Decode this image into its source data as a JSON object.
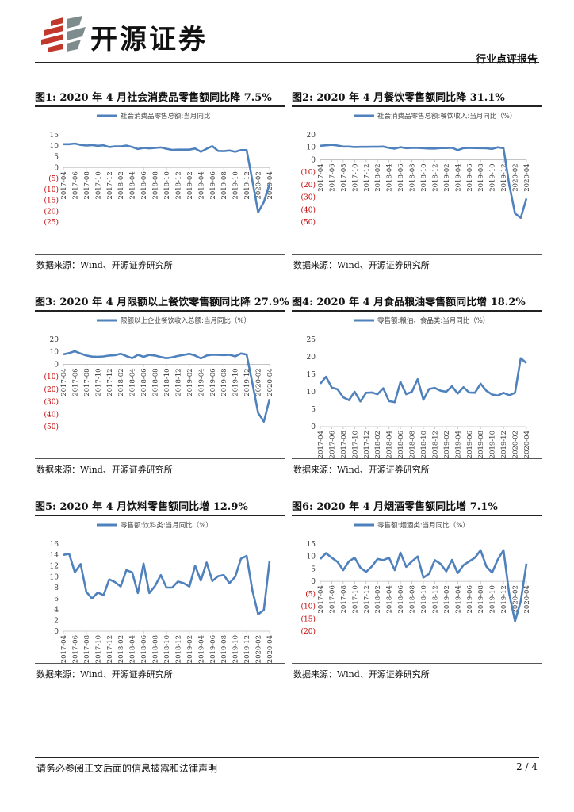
{
  "header": {
    "brand": "开源证券",
    "report_type": "行业点评报告"
  },
  "footer": {
    "disclaimer": "请务必参阅正文后面的信息披露和法律声明",
    "page": "2 / 4"
  },
  "colors": {
    "line": "#4F81BD",
    "negative_tick": "#C00000",
    "tick": "#333333"
  },
  "chart_data": [
    {
      "type": "line",
      "title": "图1:  2020 年 4 月社会消费品零售额同比降 7.5%",
      "source": "数据来源：Wind、开源证券研究所",
      "legend": "社会消费品零售总额:当月同比",
      "legend_position": "top",
      "ylim": [
        -25,
        15
      ],
      "yticks": [
        15,
        10,
        5,
        0,
        -5,
        -10,
        -15,
        -20,
        -25
      ],
      "x_tick_labels": [
        "2017-04",
        "2017-06",
        "2017-08",
        "2017-10",
        "2017-12",
        "2018-02",
        "2018-04",
        "2018-06",
        "2018-08",
        "2018-10",
        "2018-12",
        "2019-02",
        "2019-04",
        "2019-06",
        "2019-08",
        "2019-10",
        "2019-12",
        "2020-02",
        "2020-04"
      ],
      "x": [
        "2017-04",
        "2017-05",
        "2017-06",
        "2017-07",
        "2017-08",
        "2017-09",
        "2017-10",
        "2017-11",
        "2017-12",
        "2018-01",
        "2018-02",
        "2018-03",
        "2018-04",
        "2018-05",
        "2018-06",
        "2018-07",
        "2018-08",
        "2018-09",
        "2018-10",
        "2018-11",
        "2018-12",
        "2019-01",
        "2019-02",
        "2019-03",
        "2019-04",
        "2019-05",
        "2019-06",
        "2019-07",
        "2019-08",
        "2019-09",
        "2019-10",
        "2019-11",
        "2019-12",
        "2020-01",
        "2020-02",
        "2020-03",
        "2020-04"
      ],
      "values": [
        10.7,
        10.7,
        11.0,
        10.4,
        10.1,
        10.3,
        10.0,
        10.2,
        9.4,
        9.7,
        9.7,
        10.1,
        9.4,
        8.5,
        9.0,
        8.8,
        9.0,
        9.2,
        8.6,
        8.1,
        8.2,
        8.2,
        8.2,
        8.7,
        7.2,
        8.6,
        9.8,
        7.6,
        7.5,
        7.8,
        7.2,
        8.0,
        8.0,
        -6.0,
        -20.5,
        -15.8,
        -7.5
      ]
    },
    {
      "type": "line",
      "title": "图2:  2020 年 4 月餐饮零售额同比降 31.1%",
      "source": "数据来源：Wind、开源证券研究所",
      "legend": "社会消费品零售总额:餐饮收入:当月同比（%）",
      "legend_position": "top",
      "ylim": [
        -50,
        20
      ],
      "yticks": [
        20,
        10,
        0,
        -10,
        -20,
        -30,
        -40,
        -50
      ],
      "x_tick_labels": [
        "2017-04",
        "2017-06",
        "2017-08",
        "2017-10",
        "2017-12",
        "2018-02",
        "2018-04",
        "2018-06",
        "2018-08",
        "2018-10",
        "2018-12",
        "2019-02",
        "2019-04",
        "2019-06",
        "2019-08",
        "2019-10",
        "2019-12",
        "2020-02",
        "2020-04"
      ],
      "x": [
        "2017-04",
        "2017-05",
        "2017-06",
        "2017-07",
        "2017-08",
        "2017-09",
        "2017-10",
        "2017-11",
        "2017-12",
        "2018-01",
        "2018-02",
        "2018-03",
        "2018-04",
        "2018-05",
        "2018-06",
        "2018-07",
        "2018-08",
        "2018-09",
        "2018-10",
        "2018-11",
        "2018-12",
        "2019-01",
        "2019-02",
        "2019-03",
        "2019-04",
        "2019-05",
        "2019-06",
        "2019-07",
        "2019-08",
        "2019-09",
        "2019-10",
        "2019-11",
        "2019-12",
        "2020-01",
        "2020-02",
        "2020-03",
        "2020-04"
      ],
      "values": [
        11.2,
        11.6,
        12.0,
        11.4,
        10.6,
        10.6,
        10.2,
        10.3,
        10.3,
        10.4,
        10.4,
        10.6,
        9.5,
        8.9,
        10.1,
        9.3,
        9.5,
        9.5,
        9.3,
        9.0,
        9.0,
        9.4,
        9.4,
        9.6,
        7.7,
        9.3,
        9.5,
        9.4,
        9.3,
        9.2,
        8.7,
        10.0,
        9.2,
        -20.0,
        -43.1,
        -46.6,
        -31.1
      ]
    },
    {
      "type": "line",
      "title": "图3:  2020 年 4 月限额以上餐饮零售额同比降 27.9%",
      "source": "数据来源：Wind、开源证券研究所",
      "legend": "限额以上企业餐饮收入总额:当月同比（%）",
      "legend_position": "top",
      "ylim": [
        -50,
        20
      ],
      "yticks": [
        20,
        10,
        0,
        -10,
        -20,
        -30,
        -40,
        -50
      ],
      "x_tick_labels": [
        "2017-04",
        "2017-06",
        "2017-08",
        "2017-10",
        "2017-12",
        "2018-02",
        "2018-04",
        "2018-06",
        "2018-08",
        "2018-10",
        "2018-12",
        "2019-02",
        "2019-04",
        "2019-06",
        "2019-08",
        "2019-10",
        "2019-12",
        "2020-02",
        "2020-04"
      ],
      "x": [
        "2017-04",
        "2017-05",
        "2017-06",
        "2017-07",
        "2017-08",
        "2017-09",
        "2017-10",
        "2017-11",
        "2017-12",
        "2018-01",
        "2018-02",
        "2018-03",
        "2018-04",
        "2018-05",
        "2018-06",
        "2018-07",
        "2018-08",
        "2018-09",
        "2018-10",
        "2018-11",
        "2018-12",
        "2019-01",
        "2019-02",
        "2019-03",
        "2019-04",
        "2019-05",
        "2019-06",
        "2019-07",
        "2019-08",
        "2019-09",
        "2019-10",
        "2019-11",
        "2019-12",
        "2020-01",
        "2020-02",
        "2020-03",
        "2020-04"
      ],
      "values": [
        8.0,
        9.0,
        10.5,
        8.6,
        7.0,
        6.2,
        6.0,
        6.3,
        7.0,
        7.3,
        8.5,
        6.6,
        4.9,
        7.6,
        6.0,
        7.5,
        7.0,
        5.8,
        4.9,
        5.6,
        6.7,
        7.5,
        8.4,
        7.0,
        4.7,
        7.0,
        7.7,
        7.5,
        7.4,
        7.6,
        6.4,
        8.7,
        7.8,
        -15.0,
        -39.0,
        -46.0,
        -27.9
      ]
    },
    {
      "type": "line",
      "title": "图4:  2020 年 4 月食品粮油零售额同比增 18.2%",
      "source": "数据来源：Wind、开源证券研究所",
      "legend": "零售额:粮油、食品类:当月同比（%）",
      "legend_position": "top",
      "ylim": [
        0,
        25
      ],
      "yticks": [
        25,
        20,
        15,
        10,
        5,
        0
      ],
      "x_tick_labels": [
        "2017-04",
        "2017-06",
        "2017-08",
        "2017-10",
        "2017-12",
        "2018-02",
        "2018-04",
        "2018-06",
        "2018-08",
        "2018-10",
        "2018-12",
        "2019-02",
        "2019-04",
        "2019-06",
        "2019-08",
        "2019-10",
        "2019-12",
        "2020-02",
        "2020-04"
      ],
      "x": [
        "2017-04",
        "2017-05",
        "2017-06",
        "2017-07",
        "2017-08",
        "2017-09",
        "2017-10",
        "2017-11",
        "2017-12",
        "2018-01",
        "2018-02",
        "2018-03",
        "2018-04",
        "2018-05",
        "2018-06",
        "2018-07",
        "2018-08",
        "2018-09",
        "2018-10",
        "2018-11",
        "2018-12",
        "2019-01",
        "2019-02",
        "2019-03",
        "2019-04",
        "2019-05",
        "2019-06",
        "2019-07",
        "2019-08",
        "2019-09",
        "2019-10",
        "2019-11",
        "2019-12",
        "2020-01",
        "2020-02",
        "2020-03",
        "2020-04"
      ],
      "values": [
        12.3,
        14.3,
        11.2,
        10.7,
        8.4,
        7.6,
        10.0,
        7.2,
        9.7,
        9.8,
        9.3,
        11.0,
        7.3,
        7.0,
        12.8,
        9.3,
        10.0,
        13.6,
        7.7,
        10.8,
        11.1,
        10.3,
        10.0,
        11.6,
        9.5,
        11.3,
        9.8,
        9.7,
        12.3,
        10.3,
        9.2,
        8.9,
        9.7,
        9.0,
        9.7,
        19.6,
        18.2
      ]
    },
    {
      "type": "line",
      "title": "图5:  2020 年 4 月饮料零售额同比增 12.9%",
      "source": "数据来源：Wind、开源证券研究所",
      "legend": "零售额:饮料类:当月同比（%）",
      "legend_position": "top",
      "ylim": [
        0,
        16
      ],
      "yticks": [
        16,
        14,
        12,
        10,
        8,
        6,
        4,
        2,
        0
      ],
      "x_tick_labels": [
        "2017-04",
        "2017-06",
        "2017-08",
        "2017-10",
        "2017-12",
        "2018-02",
        "2018-04",
        "2018-06",
        "2018-08",
        "2018-10",
        "2018-12",
        "2019-02",
        "2019-04",
        "2019-06",
        "2019-08",
        "2019-10",
        "2019-12",
        "2020-02",
        "2020-04"
      ],
      "x": [
        "2017-04",
        "2017-05",
        "2017-06",
        "2017-07",
        "2017-08",
        "2017-09",
        "2017-10",
        "2017-11",
        "2017-12",
        "2018-01",
        "2018-02",
        "2018-03",
        "2018-04",
        "2018-05",
        "2018-06",
        "2018-07",
        "2018-08",
        "2018-09",
        "2018-10",
        "2018-11",
        "2018-12",
        "2019-01",
        "2019-02",
        "2019-03",
        "2019-04",
        "2019-05",
        "2019-06",
        "2019-07",
        "2019-08",
        "2019-09",
        "2019-10",
        "2019-11",
        "2019-12",
        "2020-01",
        "2020-02",
        "2020-03",
        "2020-04"
      ],
      "values": [
        14.0,
        14.2,
        10.8,
        12.3,
        7.2,
        6.0,
        7.1,
        6.6,
        9.5,
        9.0,
        8.2,
        11.2,
        10.8,
        7.0,
        12.4,
        7.0,
        8.3,
        10.3,
        8.0,
        8.0,
        9.1,
        8.8,
        8.2,
        12.0,
        9.3,
        12.6,
        9.2,
        10.1,
        10.3,
        8.8,
        10.0,
        13.3,
        13.8,
        7.5,
        3.1,
        3.9,
        12.9
      ]
    },
    {
      "type": "line",
      "title": "图6:  2020 年 4 月烟酒零售额同比增 7.1%",
      "source": "数据来源：Wind、开源证券研究所",
      "legend": "零售额:烟酒类:当月同比（%）",
      "legend_position": "top",
      "ylim": [
        -20,
        15
      ],
      "yticks": [
        15,
        10,
        5,
        0,
        -5,
        -10,
        -15,
        -20
      ],
      "x_tick_labels": [
        "2017-04",
        "2017-06",
        "2017-08",
        "2017-10",
        "2017-12",
        "2018-02",
        "2018-04",
        "2018-06",
        "2018-08",
        "2018-10",
        "2018-12",
        "2019-02",
        "2019-04",
        "2019-06",
        "2019-08",
        "2019-10",
        "2019-12",
        "2020-02",
        "2020-04"
      ],
      "x": [
        "2017-04",
        "2017-05",
        "2017-06",
        "2017-07",
        "2017-08",
        "2017-09",
        "2017-10",
        "2017-11",
        "2017-12",
        "2018-01",
        "2018-02",
        "2018-03",
        "2018-04",
        "2018-05",
        "2018-06",
        "2018-07",
        "2018-08",
        "2018-09",
        "2018-10",
        "2018-11",
        "2018-12",
        "2019-01",
        "2019-02",
        "2019-03",
        "2019-04",
        "2019-05",
        "2019-06",
        "2019-07",
        "2019-08",
        "2019-09",
        "2019-10",
        "2019-11",
        "2019-12",
        "2020-01",
        "2020-02",
        "2020-03",
        "2020-04"
      ],
      "values": [
        9.0,
        11.3,
        9.5,
        7.8,
        4.5,
        8.0,
        9.5,
        5.5,
        3.8,
        6.0,
        9.0,
        8.5,
        9.5,
        4.5,
        11.5,
        5.8,
        8.0,
        10.0,
        1.5,
        3.0,
        8.5,
        7.0,
        4.0,
        8.6,
        3.3,
        6.5,
        8.0,
        9.5,
        12.5,
        6.0,
        3.5,
        8.8,
        12.5,
        -5.0,
        -16.0,
        -8.0,
        7.1
      ]
    }
  ]
}
